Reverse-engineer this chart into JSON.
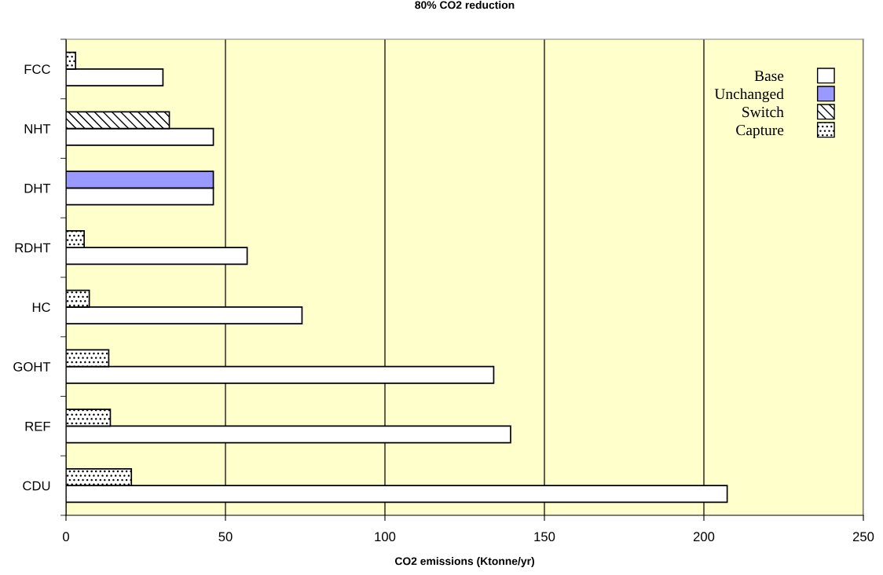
{
  "chart_data": {
    "type": "bar",
    "orientation": "horizontal",
    "title": "80% CO2 reduction",
    "xlabel": "CO2 emissions (Ktonne/yr)",
    "categories": [
      "FCC",
      "NHT",
      "DHT",
      "RDHT",
      "HC",
      "GOHT",
      "REF",
      "CDU"
    ],
    "series": [
      {
        "name": "Base",
        "color": "#ffffff",
        "values": [
          30.4,
          46.2,
          46.2,
          56.8,
          74,
          134.1,
          139.4,
          207.3
        ]
      },
      {
        "name": "Unchanged",
        "color": "#9999ff",
        "values": [
          null,
          null,
          46.2,
          null,
          null,
          null,
          null,
          null
        ]
      },
      {
        "name": "Switch",
        "color": "#ffffff",
        "values": [
          null,
          32.4,
          null,
          null,
          null,
          null,
          null,
          null
        ]
      },
      {
        "name": "Capture",
        "color": "#ffffff",
        "values": [
          3,
          null,
          null,
          5.7,
          7.3,
          13.4,
          13.9,
          20.5
        ]
      }
    ],
    "xlim": [
      0,
      250
    ],
    "xticks": [
      0,
      50,
      100,
      150,
      200,
      250
    ],
    "grid": "x",
    "legend": "top right"
  }
}
